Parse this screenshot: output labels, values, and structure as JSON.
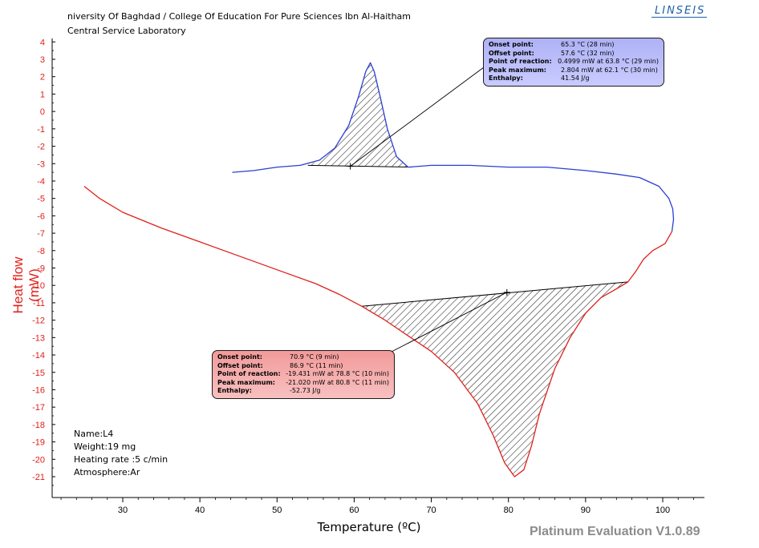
{
  "header": {
    "line1": "niversity Of Baghdad / College Of Education For Pure Sciences Ibn Al-Haitham",
    "line2": "Central Service Laboratory"
  },
  "logo": "LINSEIS",
  "footer": "Platinum Evaluation V1.0.89",
  "sample_info": [
    "Name:L4",
    "Weight:19 mg",
    "Heating rate :5 c/min",
    "Atmosphere:Ar"
  ],
  "colors": {
    "axis_y": "#e0201a",
    "heating_curve": "#2b3fd1",
    "cooling_curve": "#e0201a",
    "box_blue": "#b8bbfb",
    "box_red": "#f5b0b0"
  },
  "annotations": {
    "blue": {
      "rows": [
        {
          "k": "Onset point:",
          "v": "65.3 °C (28 min)"
        },
        {
          "k": "Offset point:",
          "v": "57.6 °C (32 min)"
        },
        {
          "k": "Point of reaction:",
          "v": "0.4999 mW at 63.8 °C (29 min)"
        },
        {
          "k": "Peak maximum:",
          "v": "2.804 mW at 62.1 °C (30 min)"
        },
        {
          "k": "Enthalpy:",
          "v": "41.54 J/g"
        }
      ]
    },
    "red": {
      "rows": [
        {
          "k": "Onset point:",
          "v": "70.9 °C (9 min)"
        },
        {
          "k": "Offset point:",
          "v": "86.9 °C (11 min)"
        },
        {
          "k": "Point of reaction:",
          "v": "-19.431 mW at 78.8 °C (10 min)"
        },
        {
          "k": "Peak maximum:",
          "v": "-21.020 mW at 80.8 °C (11 min)"
        },
        {
          "k": "Enthalpy:",
          "v": "-52.73 J/g"
        }
      ]
    }
  },
  "chart_data": {
    "type": "line",
    "xlabel": "Temperature (ºC)",
    "ylabel": "Heat flow (mW)",
    "xlim": [
      21,
      106
    ],
    "ylim": [
      -22,
      4.5
    ],
    "xticks": [
      30,
      40,
      50,
      60,
      70,
      80,
      90,
      100
    ],
    "yticks": [
      4,
      3,
      2,
      1,
      0,
      -1,
      -2,
      -3,
      -4,
      -5,
      -6,
      -7,
      -8,
      -9,
      -10,
      -11,
      -12,
      -13,
      -14,
      -15,
      -16,
      -17,
      -18,
      -19,
      -20,
      -21
    ],
    "grid": false,
    "series": [
      {
        "color": "#e0201a",
        "points": [
          [
            25,
            -4.3
          ],
          [
            27,
            -5.0
          ],
          [
            30,
            -5.8
          ],
          [
            35,
            -6.7
          ],
          [
            40,
            -7.5
          ],
          [
            45,
            -8.3
          ],
          [
            50,
            -9.1
          ],
          [
            55,
            -9.9
          ],
          [
            58,
            -10.5
          ],
          [
            61,
            -11.2
          ],
          [
            64,
            -12.0
          ],
          [
            67,
            -12.9
          ],
          [
            70,
            -13.8
          ],
          [
            73,
            -15.0
          ],
          [
            76,
            -16.8
          ],
          [
            78,
            -18.6
          ],
          [
            79.5,
            -20.2
          ],
          [
            80.8,
            -21.0
          ],
          [
            82,
            -20.6
          ],
          [
            83,
            -19.2
          ],
          [
            84,
            -17.4
          ],
          [
            86,
            -14.8
          ],
          [
            88,
            -13.0
          ],
          [
            90,
            -11.6
          ],
          [
            92,
            -10.7
          ],
          [
            94,
            -10.2
          ],
          [
            95.5,
            -9.8
          ],
          [
            96.5,
            -9.2
          ],
          [
            97.5,
            -8.5
          ],
          [
            98.7,
            -8.0
          ],
          [
            100.3,
            -7.6
          ],
          [
            101.2,
            -6.9
          ]
        ]
      },
      {
        "color": "#2b3fd1",
        "points": [
          [
            101.2,
            -6.9
          ],
          [
            101.4,
            -6.2
          ],
          [
            101.3,
            -5.6
          ],
          [
            100.8,
            -5.0
          ],
          [
            99.5,
            -4.3
          ],
          [
            97,
            -3.8
          ],
          [
            94,
            -3.6
          ],
          [
            90,
            -3.4
          ],
          [
            85,
            -3.2
          ],
          [
            80,
            -3.2
          ],
          [
            75,
            -3.1
          ],
          [
            70,
            -3.1
          ],
          [
            67,
            -3.2
          ],
          [
            65.5,
            -2.6
          ],
          [
            64.3,
            -1.0
          ],
          [
            63.4,
            0.8
          ],
          [
            62.6,
            2.3
          ],
          [
            62.1,
            2.8
          ],
          [
            61.5,
            2.3
          ],
          [
            60.6,
            0.9
          ],
          [
            59.3,
            -0.8
          ],
          [
            57.5,
            -2.1
          ],
          [
            55.5,
            -2.8
          ],
          [
            53,
            -3.1
          ],
          [
            50,
            -3.2
          ],
          [
            47,
            -3.4
          ],
          [
            44.2,
            -3.5
          ]
        ]
      }
    ],
    "baselines": [
      {
        "color": "#000000",
        "from": [
          54,
          -3.1
        ],
        "to": [
          67.5,
          -3.2
        ]
      },
      {
        "color": "#000000",
        "from": [
          61,
          -11.2
        ],
        "to": [
          95.5,
          -9.8
        ]
      }
    ],
    "annotation_markers": [
      {
        "at": [
          59.5,
          -3.15
        ],
        "label": "blue"
      },
      {
        "at": [
          79.8,
          -10.4
        ],
        "label": "red"
      }
    ]
  }
}
